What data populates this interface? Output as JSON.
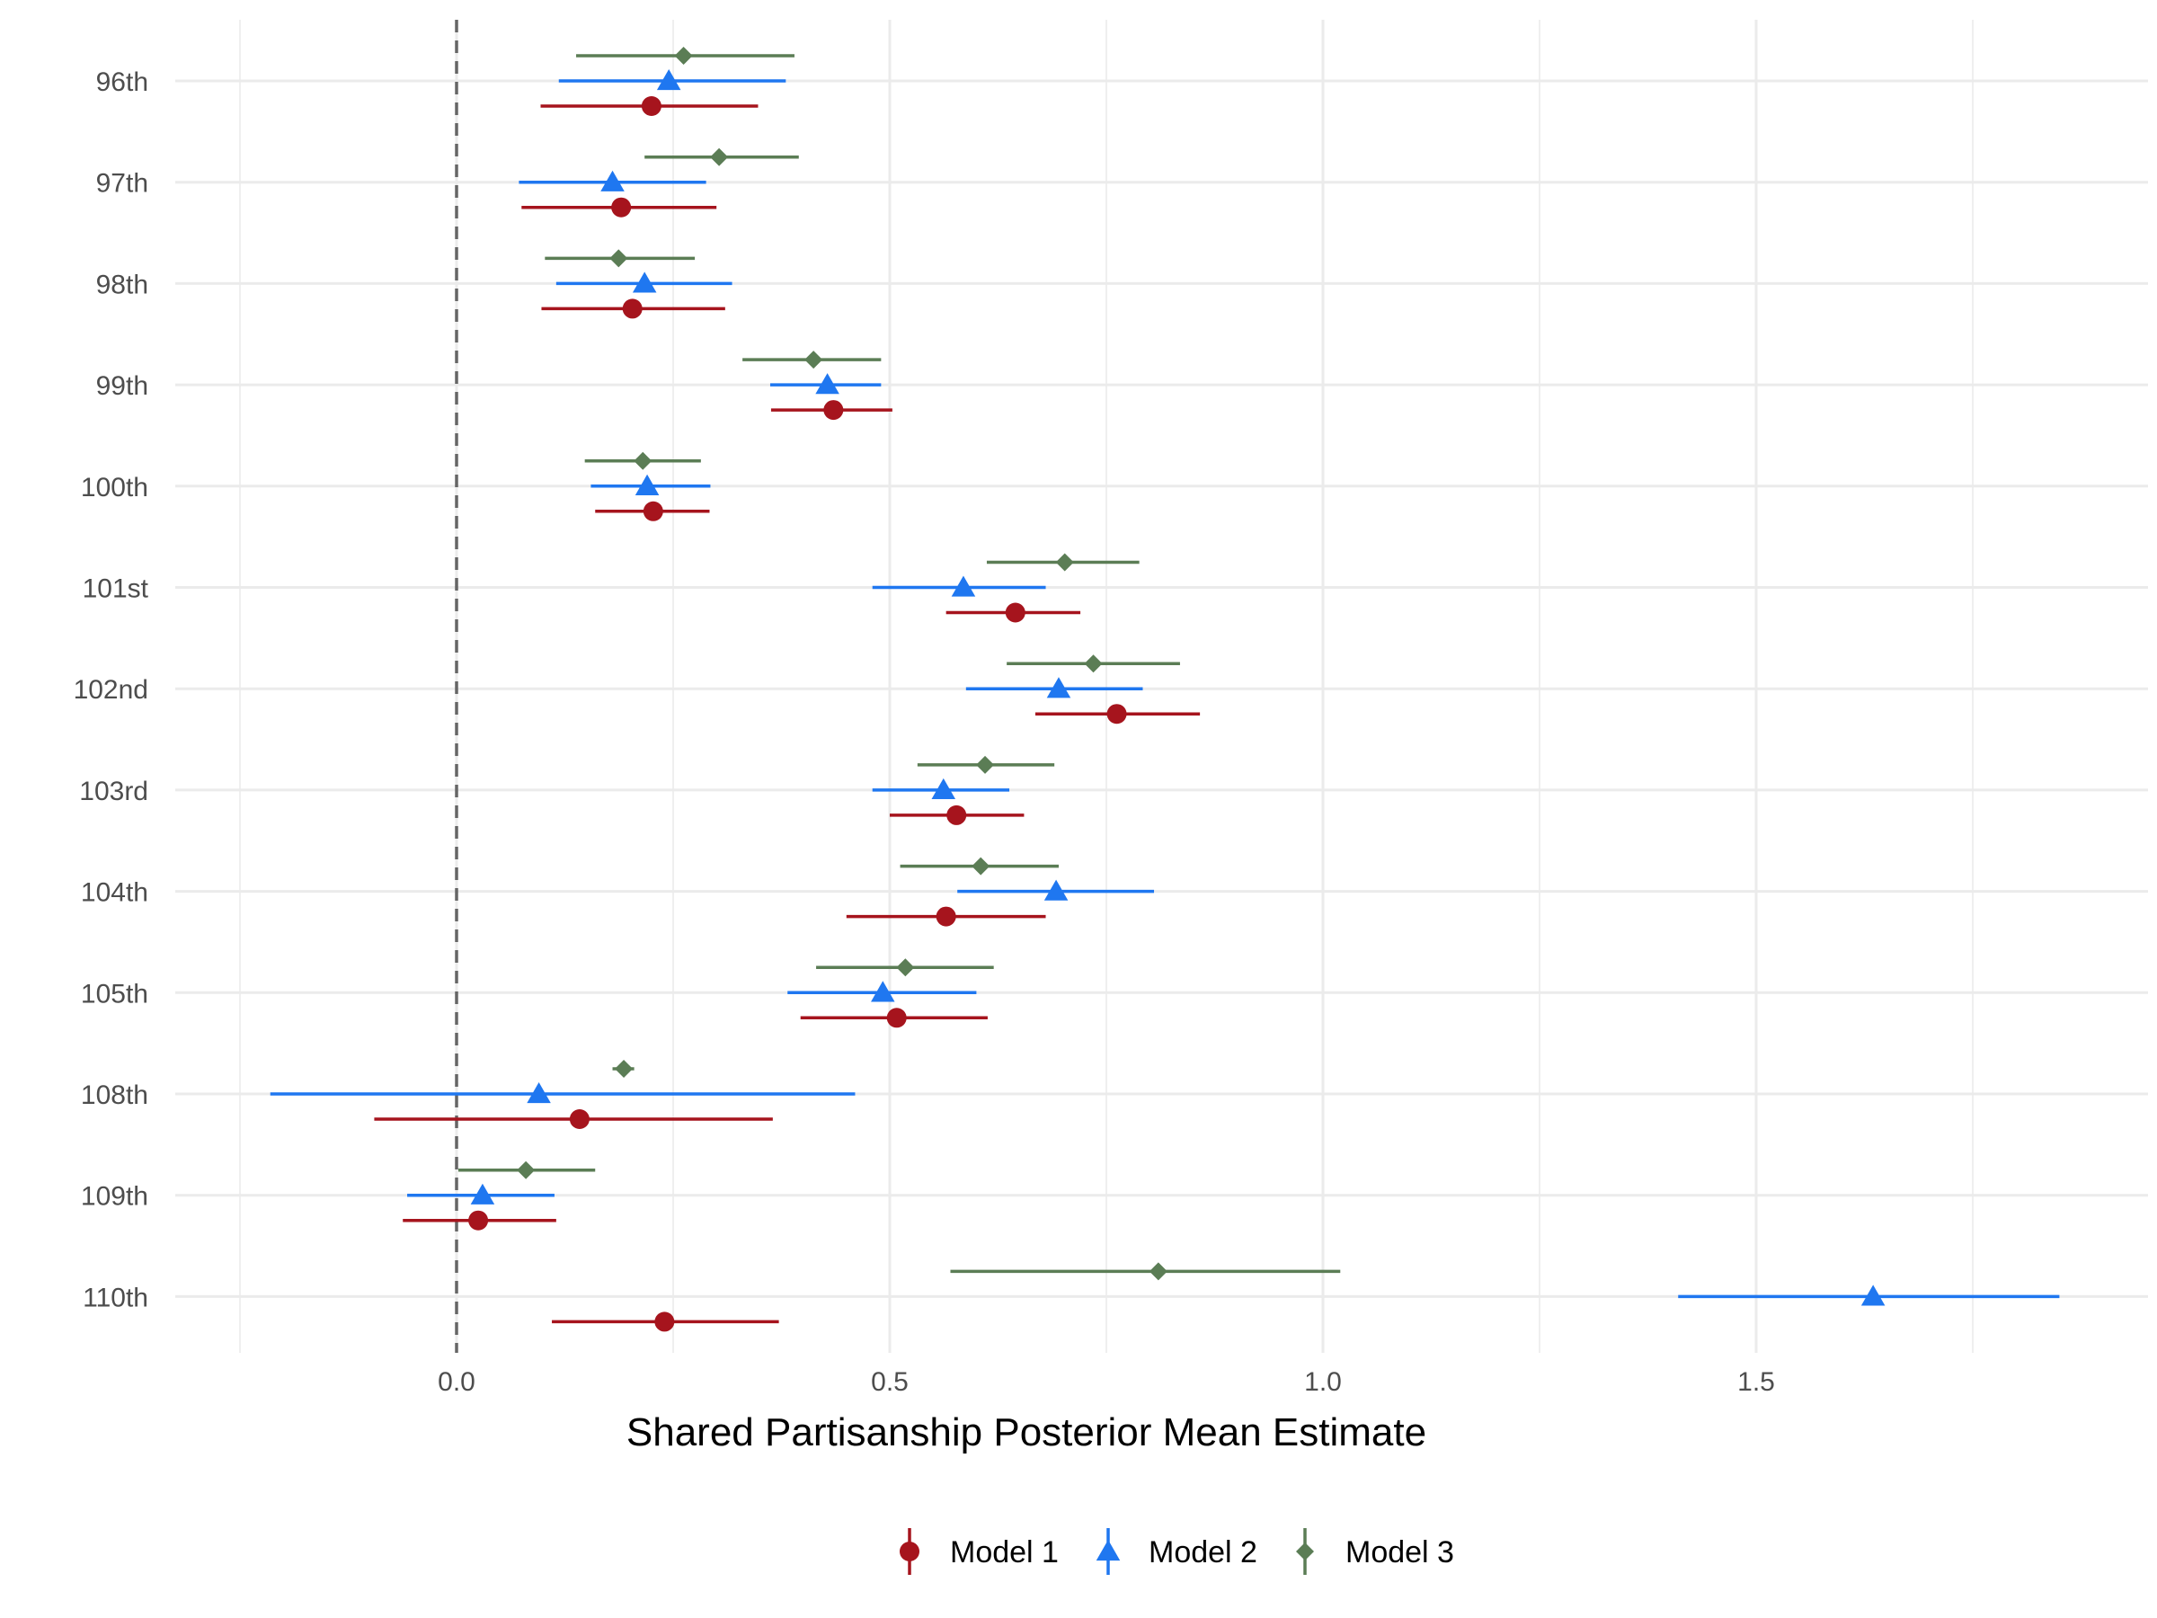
{
  "chart_data": {
    "type": "scatter",
    "subtype": "point-range",
    "title": "",
    "xlabel": "Shared Partisanship Posterior Mean Estimate",
    "ylabel": "",
    "xlim": [
      -0.25,
      1.95
    ],
    "x_ticks": [
      0.0,
      0.5,
      1.0,
      1.5
    ],
    "x_tick_labels": [
      "0.0",
      "0.5",
      "1.0",
      "1.5"
    ],
    "reference_line": {
      "x": 0.0,
      "style": "dashed",
      "color": "#666666"
    },
    "grid": true,
    "legend_position": "bottom",
    "categories": [
      "96th",
      "97th",
      "98th",
      "99th",
      "100th",
      "101st",
      "102nd",
      "103rd",
      "104th",
      "105th",
      "108th",
      "109th",
      "110th"
    ],
    "series": [
      {
        "name": "Model 1",
        "color": "#A6141D",
        "marker": "circle",
        "points": [
          {
            "est": 0.225,
            "lo": 0.097,
            "hi": 0.348
          },
          {
            "est": 0.19,
            "lo": 0.075,
            "hi": 0.3
          },
          {
            "est": 0.203,
            "lo": 0.098,
            "hi": 0.31
          },
          {
            "est": 0.435,
            "lo": 0.363,
            "hi": 0.503
          },
          {
            "est": 0.227,
            "lo": 0.16,
            "hi": 0.292
          },
          {
            "est": 0.645,
            "lo": 0.565,
            "hi": 0.72
          },
          {
            "est": 0.762,
            "lo": 0.668,
            "hi": 0.858
          },
          {
            "est": 0.577,
            "lo": 0.5,
            "hi": 0.655
          },
          {
            "est": 0.565,
            "lo": 0.45,
            "hi": 0.68
          },
          {
            "est": 0.508,
            "lo": 0.397,
            "hi": 0.613
          },
          {
            "est": 0.142,
            "lo": -0.095,
            "hi": 0.365
          },
          {
            "est": 0.025,
            "lo": -0.062,
            "hi": 0.115
          },
          {
            "est": 0.24,
            "lo": 0.11,
            "hi": 0.372
          }
        ]
      },
      {
        "name": "Model 2",
        "color": "#1F77F0",
        "marker": "triangle",
        "points": [
          {
            "est": 0.245,
            "lo": 0.118,
            "hi": 0.38
          },
          {
            "est": 0.18,
            "lo": 0.072,
            "hi": 0.288
          },
          {
            "est": 0.217,
            "lo": 0.115,
            "hi": 0.318
          },
          {
            "est": 0.428,
            "lo": 0.362,
            "hi": 0.49
          },
          {
            "est": 0.22,
            "lo": 0.155,
            "hi": 0.293
          },
          {
            "est": 0.585,
            "lo": 0.48,
            "hi": 0.68
          },
          {
            "est": 0.695,
            "lo": 0.588,
            "hi": 0.792
          },
          {
            "est": 0.562,
            "lo": 0.48,
            "hi": 0.638
          },
          {
            "est": 0.692,
            "lo": 0.578,
            "hi": 0.805
          },
          {
            "est": 0.492,
            "lo": 0.382,
            "hi": 0.6
          },
          {
            "est": 0.095,
            "lo": -0.215,
            "hi": 0.46
          },
          {
            "est": 0.03,
            "lo": -0.057,
            "hi": 0.113
          },
          {
            "est": 1.635,
            "lo": 1.41,
            "hi": 1.85
          }
        ]
      },
      {
        "name": "Model 3",
        "color": "#5B7D55",
        "marker": "diamond",
        "points": [
          {
            "est": 0.262,
            "lo": 0.138,
            "hi": 0.39
          },
          {
            "est": 0.303,
            "lo": 0.217,
            "hi": 0.395
          },
          {
            "est": 0.187,
            "lo": 0.102,
            "hi": 0.275
          },
          {
            "est": 0.412,
            "lo": 0.33,
            "hi": 0.49
          },
          {
            "est": 0.215,
            "lo": 0.148,
            "hi": 0.282
          },
          {
            "est": 0.702,
            "lo": 0.612,
            "hi": 0.788
          },
          {
            "est": 0.735,
            "lo": 0.635,
            "hi": 0.835
          },
          {
            "est": 0.61,
            "lo": 0.532,
            "hi": 0.69
          },
          {
            "est": 0.605,
            "lo": 0.512,
            "hi": 0.695
          },
          {
            "est": 0.518,
            "lo": 0.415,
            "hi": 0.62
          },
          {
            "est": 0.193,
            "lo": 0.18,
            "hi": 0.205
          },
          {
            "est": 0.08,
            "lo": 0.002,
            "hi": 0.16
          },
          {
            "est": 0.81,
            "lo": 0.57,
            "hi": 1.02
          }
        ]
      }
    ]
  }
}
